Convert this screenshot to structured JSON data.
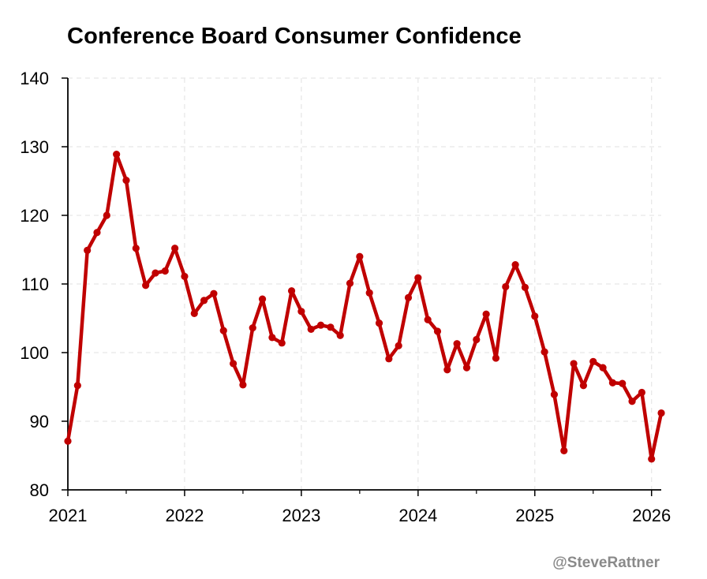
{
  "chart_data": {
    "type": "line",
    "title": "Conference Board Consumer Confidence",
    "xlabel": "",
    "ylabel": "",
    "ylim": [
      80,
      140
    ],
    "yticks": [
      80,
      90,
      100,
      110,
      120,
      130,
      140
    ],
    "xlim": [
      2021,
      2026.083
    ],
    "xticks": [
      2021,
      2022,
      2023,
      2024,
      2025,
      2026
    ],
    "xtick_labels": [
      "2021",
      "2022",
      "2023",
      "2024",
      "2025",
      "2026"
    ],
    "grid": true,
    "line_color": "#C00000",
    "series": [
      {
        "name": "Conference Board Consumer Confidence",
        "x_start": 2021,
        "x_step_months": 1,
        "values": [
          87.1,
          95.2,
          114.9,
          117.5,
          120.0,
          128.9,
          125.1,
          115.2,
          109.8,
          111.6,
          111.9,
          115.2,
          111.1,
          105.7,
          107.6,
          108.6,
          103.2,
          98.4,
          95.3,
          103.6,
          107.8,
          102.2,
          101.4,
          109.0,
          106.0,
          103.4,
          104.0,
          103.7,
          102.5,
          110.1,
          114.0,
          108.7,
          104.3,
          99.1,
          101.0,
          108.0,
          110.9,
          104.8,
          103.1,
          97.5,
          101.3,
          97.8,
          101.9,
          105.6,
          99.2,
          109.6,
          112.8,
          109.5,
          105.3,
          100.1,
          93.9,
          85.7,
          98.4,
          95.2,
          98.7,
          97.8,
          95.6,
          95.5,
          92.9,
          94.2,
          84.5,
          91.2
        ]
      }
    ],
    "credit": "@SteveRattner"
  }
}
